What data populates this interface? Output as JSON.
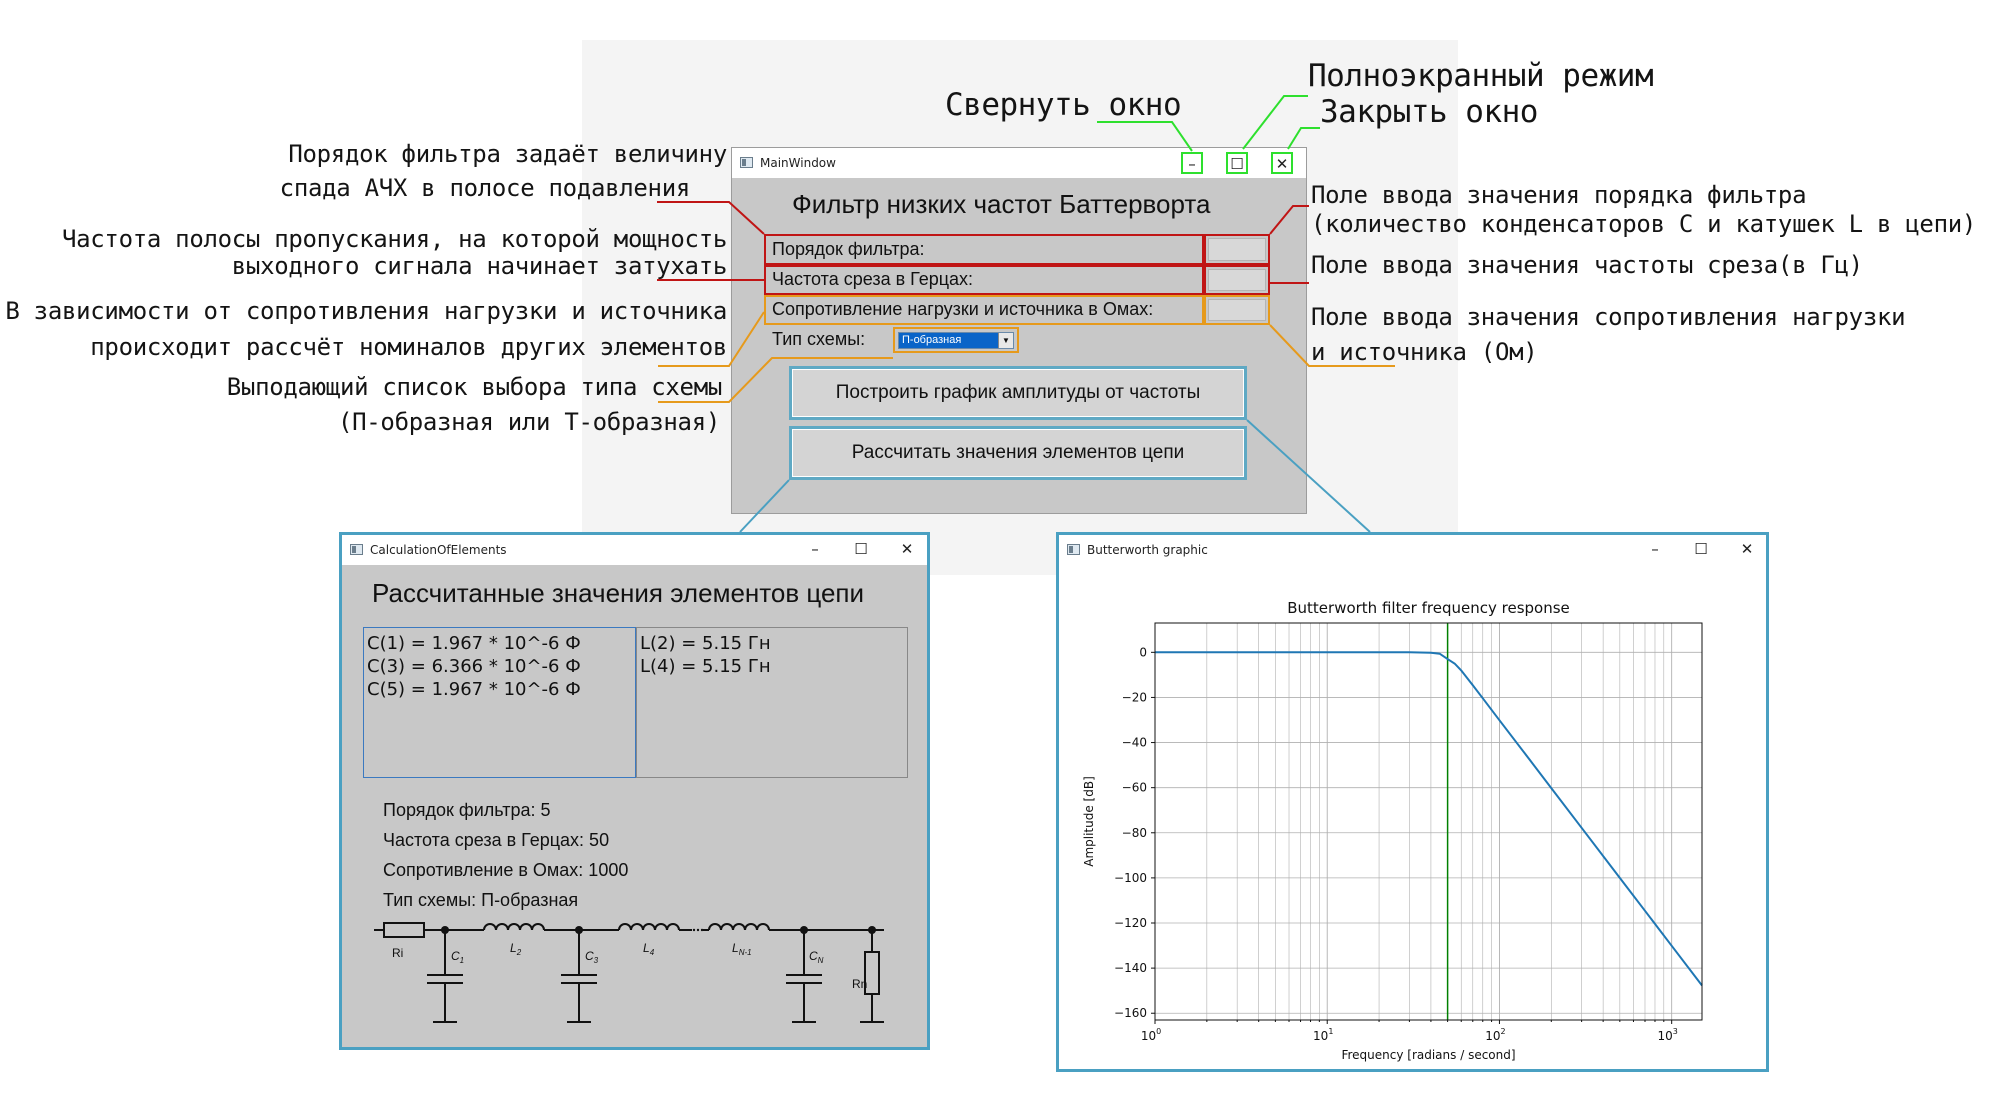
{
  "annotations": {
    "minimize": "Свернуть окно",
    "fullscreen": "Полноэкранный режим",
    "close": "Закрыть окно",
    "order_1": "Порядок фильтра задаёт величину",
    "order_2": "спада АЧХ в полосе подавления",
    "cutoff_1": "Частота полосы пропускания, на которой мощность",
    "cutoff_2": "выходного сигнала начинает затухать",
    "resist_1": "В зависимости от сопротивления нагрузки и источника",
    "resist_2": "происходит рассчёт номиналов других элементов",
    "combo_1": "Выподающий список выбора типа схемы",
    "combo_2": "(П-образная или Т-образная)",
    "order_input_1": "Поле ввода значения порядка фильтра",
    "order_input_2": "(количество конденсаторов C и катушек L в цепи)",
    "cutoff_input": "Поле ввода значения частоты среза(в Гц)",
    "resist_input_1": "Поле ввода значения сопротивления нагрузки",
    "resist_input_2": "и источника (Ом)"
  },
  "main_window": {
    "title": "MainWindow",
    "heading": "Фильтр низких частот Баттерворта",
    "fields": {
      "order_label": "Порядок фильтра:",
      "cutoff_label": "Частота среза в Герцах:",
      "resist_label": "Сопротивление нагрузки и источника в Омах:",
      "scheme_label": "Тип схемы:"
    },
    "scheme_selected": "П-образная",
    "plot_button": "Построить график амплитуды от частоты",
    "calc_button": "Рассчитать значения элементов цепи",
    "controls": {
      "minimize": "–",
      "maximize": "☐",
      "close": "✕"
    }
  },
  "calc_window": {
    "title": "CalculationOfElements",
    "heading": "Рассчитанные значения элементов цепи",
    "capacitors": [
      "C(1) = 1.967 * 10^-6 Ф",
      "C(3) = 6.366 * 10^-6 Ф",
      "C(5) = 1.967 * 10^-6 Ф"
    ],
    "inductors": [
      "L(2) = 5.15 Гн",
      "L(4) = 5.15 Гн"
    ],
    "info": [
      "Порядок фильтра: 5",
      "Частота среза в Герцах: 50",
      "Сопротивление в Омах: 1000",
      "Тип схемы: П-образная"
    ],
    "circuit_labels": {
      "ri": "Ri",
      "rn": "Rn",
      "c1": "C",
      "c1_sub": "1",
      "l2": "L",
      "l2_sub": "2",
      "c3": "C",
      "c3_sub": "3",
      "l4": "L",
      "l4_sub": "4",
      "ln1": "L",
      "ln1_sub": "N-1",
      "cn": "C",
      "cn_sub": "N"
    },
    "controls": {
      "minimize": "–",
      "maximize": "☐",
      "close": "✕"
    }
  },
  "graph_window": {
    "title": "Butterworth graphic",
    "controls": {
      "minimize": "–",
      "maximize": "☐",
      "close": "✕"
    }
  },
  "colors": {
    "red": "#c01515",
    "orange": "#e69a1c",
    "green": "#2ee02e",
    "blue": "#4aa0c2",
    "curve": "#1f77b4",
    "cutoff": "#008000"
  },
  "chart_data": {
    "type": "line",
    "title": "Butterworth filter frequency response",
    "xlabel": "Frequency [radians / second]",
    "ylabel": "Amplitude [dB]",
    "x_scale": "log",
    "xlim": [
      1,
      1500
    ],
    "ylim": [
      -163,
      13
    ],
    "x_ticks": [
      1,
      10,
      100,
      1000
    ],
    "x_tick_labels": [
      {
        "base": "10",
        "exp": "0"
      },
      {
        "base": "10",
        "exp": "1"
      },
      {
        "base": "10",
        "exp": "2"
      },
      {
        "base": "10",
        "exp": "3"
      }
    ],
    "y_ticks": [
      0,
      -20,
      -40,
      -60,
      -80,
      -100,
      -120,
      -140,
      -160
    ],
    "y_tick_labels": [
      "0",
      "−20",
      "−40",
      "−60",
      "−80",
      "−100",
      "−120",
      "−140",
      "−160"
    ],
    "grid": true,
    "series": [
      {
        "x": [
          1,
          5,
          10,
          20,
          30,
          40,
          45,
          50,
          55,
          60,
          70,
          80,
          100,
          150,
          200,
          300,
          500,
          700,
          1000,
          1500
        ],
        "y": [
          0,
          0,
          0,
          0,
          0,
          -0.2,
          -0.6,
          -3,
          -5,
          -8,
          -14.6,
          -20.4,
          -30.1,
          -47.7,
          -60.2,
          -77.8,
          -100,
          -114.6,
          -130.1,
          -147.7
        ]
      }
    ],
    "cutoff_x": 50
  }
}
